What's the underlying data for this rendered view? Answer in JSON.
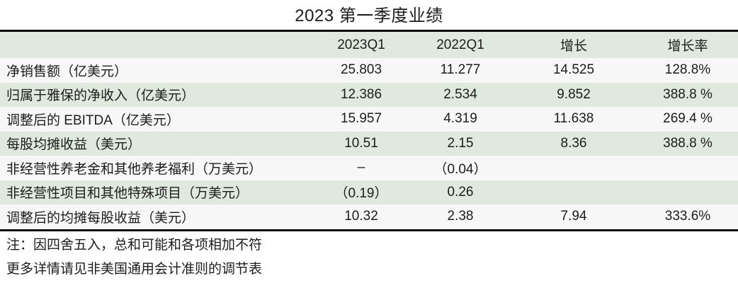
{
  "title": "2023 第一季度业绩",
  "table": {
    "headers": {
      "label": "",
      "c1": "2023Q1",
      "c2": "2022Q1",
      "c3": "增长",
      "c4": "增长率"
    },
    "rows": [
      {
        "label": "净销售额（亿美元）",
        "c1": "25.803",
        "c2": "11.277",
        "c3": "14.525",
        "c4": "128.8%"
      },
      {
        "label": "归属于雅保的净收入（亿美元）",
        "c1": "12.386",
        "c2": "2.534",
        "c3": "9.852",
        "c4": "388.8 %"
      },
      {
        "label": "调整后的 EBITDA（亿美元）",
        "c1": "15.957",
        "c2": "4.319",
        "c3": "11.638",
        "c4": "269.4 %"
      },
      {
        "label": "每股均摊收益（美元）",
        "c1": "10.51",
        "c2": "2.15",
        "c3": "8.36",
        "c4": "388.8 %"
      },
      {
        "label": "非经营性养老金和其他养老福利（万美元）",
        "c1": "–",
        "c2": "（0.04）",
        "c3": "",
        "c4": ""
      },
      {
        "label": "非经营性项目和其他特殊项目（万美元）",
        "c1": "（0.19）",
        "c2": "0.26",
        "c3": "",
        "c4": ""
      },
      {
        "label": "调整后的均摊每股收益（美元）",
        "c1": "10.32",
        "c2": "2.38",
        "c3": "7.94",
        "c4": "333.6%"
      }
    ]
  },
  "notes": [
    "注：因四舍五入，总和可能和各项相加不符",
    "更多详情请见非美国通用会计准则的调节表"
  ],
  "colors": {
    "stripe_green": "#dfe9de",
    "stripe_light": "#f6f7f6",
    "rule": "#0d0d0d",
    "text": "#1c1c1c",
    "background": "#ffffff"
  }
}
